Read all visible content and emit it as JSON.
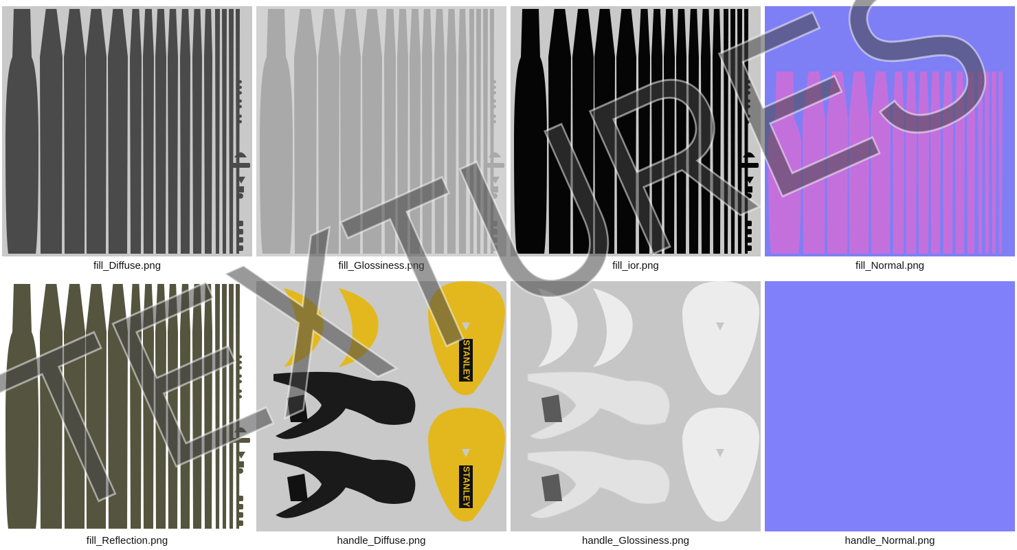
{
  "tiles": [
    {
      "label": "fill_Diffuse.png"
    },
    {
      "label": "fill_Glossiness.png"
    },
    {
      "label": "fill_ior.png"
    },
    {
      "label": "fill_Normal.png"
    },
    {
      "label": "fill_Reflection.png"
    },
    {
      "label": "handle_Diffuse.png",
      "brand": "STANLEY"
    },
    {
      "label": "handle_Glossiness.png"
    },
    {
      "label": "handle_Normal.png"
    }
  ],
  "watermark": "TEXTURES"
}
